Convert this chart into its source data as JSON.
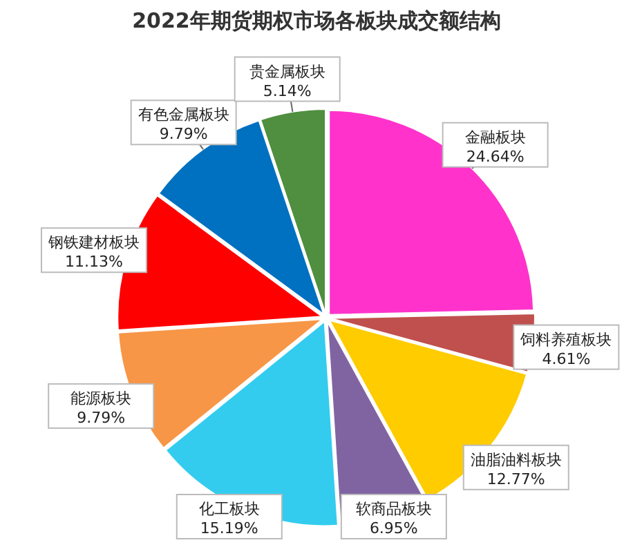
{
  "chart_data": {
    "type": "pie",
    "title": "2022年期货期权市场各板块成交额结构",
    "categories": [
      "金融板块",
      "饲料养殖板块",
      "油脂油料板块",
      "软商品板块",
      "化工板块",
      "能源板块",
      "钢铁建材板块",
      "有色金属板块",
      "贵金属板块"
    ],
    "values": [
      24.64,
      4.61,
      12.77,
      6.95,
      15.19,
      9.79,
      11.13,
      9.79,
      5.14
    ],
    "value_labels": [
      "24.64%",
      "4.61%",
      "12.77%",
      "6.95%",
      "15.19%",
      "9.79%",
      "11.13%",
      "9.79%",
      "5.14%"
    ],
    "colors": [
      "#ff33cc",
      "#c0504d",
      "#ffcc00",
      "#8064a2",
      "#33ccee",
      "#f79646",
      "#ff0000",
      "#0070c0",
      "#4f8f3f"
    ]
  }
}
